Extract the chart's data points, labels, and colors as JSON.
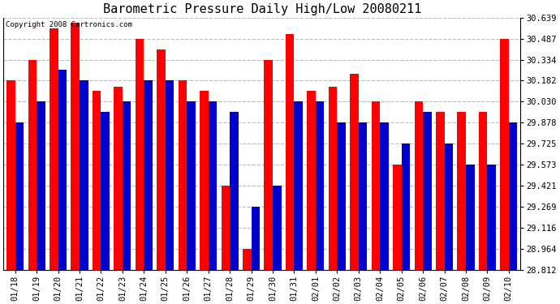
{
  "title": "Barometric Pressure Daily High/Low 20080211",
  "copyright": "Copyright 2008 Cartronics.com",
  "dates": [
    "01/18",
    "01/19",
    "01/20",
    "01/21",
    "01/22",
    "01/23",
    "01/24",
    "01/25",
    "01/26",
    "01/27",
    "01/28",
    "01/29",
    "01/30",
    "01/31",
    "02/01",
    "02/02",
    "02/03",
    "02/04",
    "02/05",
    "02/06",
    "02/07",
    "02/08",
    "02/09",
    "02/10"
  ],
  "highs": [
    30.182,
    30.334,
    30.563,
    30.6,
    30.106,
    30.135,
    30.487,
    30.41,
    30.182,
    30.106,
    29.421,
    28.964,
    30.334,
    30.521,
    30.106,
    30.135,
    30.23,
    30.03,
    29.573,
    30.03,
    29.954,
    29.954,
    29.954,
    30.487
  ],
  "lows": [
    29.878,
    30.03,
    30.259,
    30.182,
    29.954,
    30.03,
    30.182,
    30.182,
    30.03,
    30.03,
    29.954,
    29.269,
    29.421,
    30.03,
    30.03,
    29.878,
    29.878,
    29.878,
    29.725,
    29.954,
    29.725,
    29.573,
    29.573,
    29.878
  ],
  "ylim_min": 28.812,
  "ylim_max": 30.639,
  "yticks": [
    28.812,
    28.964,
    29.116,
    29.269,
    29.421,
    29.573,
    29.725,
    29.878,
    30.03,
    30.182,
    30.334,
    30.487,
    30.639
  ],
  "bar_color_high": "#ff0000",
  "bar_color_low": "#0000cc",
  "background_color": "#ffffff",
  "grid_color": "#bbbbbb",
  "title_fontsize": 11,
  "tick_fontsize": 7.5,
  "bar_width": 0.4
}
